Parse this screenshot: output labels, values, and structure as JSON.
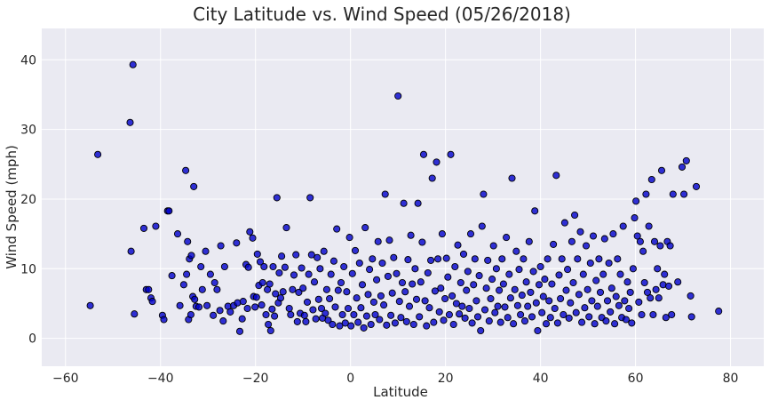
{
  "chart_data": {
    "type": "scatter",
    "title": "City Latitude vs. Wind Speed (05/26/2018)",
    "xlabel": "Latitude",
    "ylabel": "Wind Speed (mph)",
    "xlim": [
      -65,
      87
    ],
    "ylim": [
      -4,
      44.5
    ],
    "xticks": [
      -60,
      -40,
      -20,
      0,
      20,
      40,
      60,
      80
    ],
    "yticks": [
      0,
      10,
      20,
      30,
      40
    ],
    "xtick_labels": [
      "−60",
      "−40",
      "−20",
      "0",
      "20",
      "40",
      "60",
      "80"
    ],
    "ytick_labels": [
      "0",
      "10",
      "20",
      "30",
      "40"
    ],
    "grid": true,
    "colors": {
      "background": "#eaeaf2",
      "grid": "#ffffff",
      "point_fill": "#0000cc",
      "point_edge": "#000000"
    },
    "points": [
      [
        -54.8,
        4.7
      ],
      [
        -53.2,
        26.4
      ],
      [
        -46.4,
        31.0
      ],
      [
        -45.8,
        39.3
      ],
      [
        -46.2,
        12.5
      ],
      [
        -45.5,
        3.5
      ],
      [
        -43.5,
        15.8
      ],
      [
        -43.0,
        7.0
      ],
      [
        -42.5,
        7.0
      ],
      [
        -42.0,
        5.8
      ],
      [
        -41.7,
        5.3
      ],
      [
        -41.0,
        16.1
      ],
      [
        -39.6,
        3.3
      ],
      [
        -39.3,
        2.7
      ],
      [
        -38.5,
        18.3
      ],
      [
        -38.2,
        18.3
      ],
      [
        -37.6,
        9.0
      ],
      [
        -36.4,
        15.0
      ],
      [
        -35.9,
        4.7
      ],
      [
        -35.1,
        7.7
      ],
      [
        -34.7,
        24.1
      ],
      [
        -34.5,
        9.2
      ],
      [
        -34.3,
        13.9
      ],
      [
        -34.1,
        2.7
      ],
      [
        -33.9,
        11.4
      ],
      [
        -33.6,
        3.4
      ],
      [
        -33.5,
        11.9
      ],
      [
        -33.2,
        6.0
      ],
      [
        -33.0,
        21.8
      ],
      [
        -32.8,
        5.6
      ],
      [
        -32.5,
        4.6
      ],
      [
        -31.9,
        4.5
      ],
      [
        -31.5,
        10.3
      ],
      [
        -31.2,
        7.0
      ],
      [
        -30.5,
        12.5
      ],
      [
        -30.2,
        4.7
      ],
      [
        -29.5,
        9.2
      ],
      [
        -28.9,
        3.3
      ],
      [
        -28.6,
        8.0
      ],
      [
        -28.1,
        7.0
      ],
      [
        -27.5,
        4.0
      ],
      [
        -27.3,
        13.3
      ],
      [
        -26.8,
        2.5
      ],
      [
        -26.5,
        10.3
      ],
      [
        -25.8,
        4.6
      ],
      [
        -25.3,
        3.8
      ],
      [
        -24.6,
        4.7
      ],
      [
        -24.0,
        13.7
      ],
      [
        -23.8,
        5.1
      ],
      [
        -23.3,
        1.0
      ],
      [
        -22.8,
        2.8
      ],
      [
        -22.6,
        5.3
      ],
      [
        -22.0,
        10.6
      ],
      [
        -21.7,
        4.3
      ],
      [
        -21.5,
        10.2
      ],
      [
        -21.2,
        15.3
      ],
      [
        -20.6,
        14.4
      ],
      [
        -20.4,
        6.0
      ],
      [
        -20.1,
        4.5
      ],
      [
        -19.8,
        5.9
      ],
      [
        -19.6,
        12.1
      ],
      [
        -19.3,
        7.6
      ],
      [
        -19.0,
        11.0
      ],
      [
        -18.7,
        4.8
      ],
      [
        -18.5,
        8.0
      ],
      [
        -18.2,
        10.3
      ],
      [
        -17.8,
        3.4
      ],
      [
        -17.5,
        7.0
      ],
      [
        -17.3,
        2.0
      ],
      [
        -17.0,
        7.8
      ],
      [
        -16.8,
        1.1
      ],
      [
        -16.5,
        4.2
      ],
      [
        -16.3,
        10.3
      ],
      [
        -16.0,
        3.2
      ],
      [
        -15.8,
        6.4
      ],
      [
        -15.5,
        20.2
      ],
      [
        -15.2,
        5.1
      ],
      [
        -15.0,
        9.4
      ],
      [
        -14.7,
        5.8
      ],
      [
        -14.5,
        11.8
      ],
      [
        -14.2,
        6.7
      ],
      [
        -13.8,
        10.2
      ],
      [
        -13.5,
        15.9
      ],
      [
        -12.9,
        4.3
      ],
      [
        -12.6,
        3.4
      ],
      [
        -12.2,
        7.0
      ],
      [
        -11.9,
        9.1
      ],
      [
        -11.5,
        12.0
      ],
      [
        -11.2,
        2.4
      ],
      [
        -10.9,
        6.6
      ],
      [
        -10.6,
        3.6
      ],
      [
        -10.3,
        10.1
      ],
      [
        -10.0,
        7.2
      ],
      [
        -9.7,
        3.3
      ],
      [
        -9.4,
        2.4
      ],
      [
        -9.1,
        5.2
      ],
      [
        -8.8,
        9.2
      ],
      [
        -8.5,
        20.2
      ],
      [
        -8.2,
        12.0
      ],
      [
        -7.9,
        4.1
      ],
      [
        -7.6,
        8.1
      ],
      [
        -7.3,
        2.8
      ],
      [
        -7.0,
        11.6
      ],
      [
        -6.7,
        5.6
      ],
      [
        -6.4,
        10.0
      ],
      [
        -6.1,
        4.3
      ],
      [
        -5.9,
        2.9
      ],
      [
        -5.6,
        12.5
      ],
      [
        -5.3,
        3.6
      ],
      [
        -5.0,
        7.0
      ],
      [
        -4.7,
        2.6
      ],
      [
        -4.4,
        5.7
      ],
      [
        -4.1,
        9.2
      ],
      [
        -3.8,
        2.0
      ],
      [
        -3.5,
        11.1
      ],
      [
        -3.2,
        4.5
      ],
      [
        -2.9,
        15.7
      ],
      [
        -2.6,
        6.9
      ],
      [
        -2.3,
        1.8
      ],
      [
        -2.0,
        8.0
      ],
      [
        -1.7,
        3.4
      ],
      [
        -1.4,
        10.3
      ],
      [
        -1.1,
        2.2
      ],
      [
        -0.8,
        6.7
      ],
      [
        -0.5,
        4.3
      ],
      [
        -0.2,
        14.5
      ],
      [
        0.1,
        1.8
      ],
      [
        0.4,
        9.3
      ],
      [
        0.7,
        3.4
      ],
      [
        1.0,
        12.6
      ],
      [
        1.3,
        5.8
      ],
      [
        1.6,
        2.3
      ],
      [
        1.9,
        10.8
      ],
      [
        2.2,
        4.4
      ],
      [
        2.5,
        7.7
      ],
      [
        2.8,
        1.5
      ],
      [
        3.1,
        15.9
      ],
      [
        3.4,
        3.2
      ],
      [
        3.7,
        6.3
      ],
      [
        4.0,
        9.9
      ],
      [
        4.3,
        2.0
      ],
      [
        4.6,
        11.4
      ],
      [
        4.9,
        5.2
      ],
      [
        5.2,
        3.4
      ],
      [
        5.5,
        8.4
      ],
      [
        5.8,
        13.9
      ],
      [
        6.1,
        2.7
      ],
      [
        6.4,
        6.1
      ],
      [
        6.7,
        10.8
      ],
      [
        7.0,
        4.8
      ],
      [
        7.3,
        20.7
      ],
      [
        7.6,
        1.9
      ],
      [
        7.9,
        8.9
      ],
      [
        8.2,
        14.1
      ],
      [
        8.5,
        3.3
      ],
      [
        8.8,
        6.5
      ],
      [
        9.1,
        11.6
      ],
      [
        9.4,
        2.2
      ],
      [
        9.7,
        9.3
      ],
      [
        10.0,
        34.8
      ],
      [
        10.3,
        5.3
      ],
      [
        10.6,
        3.0
      ],
      [
        10.9,
        8.0
      ],
      [
        11.2,
        19.4
      ],
      [
        11.5,
        6.7
      ],
      [
        11.8,
        2.4
      ],
      [
        12.1,
        11.3
      ],
      [
        12.4,
        4.6
      ],
      [
        12.7,
        14.8
      ],
      [
        13.0,
        7.8
      ],
      [
        13.3,
        2.0
      ],
      [
        13.6,
        10.0
      ],
      [
        13.9,
        5.6
      ],
      [
        14.2,
        19.4
      ],
      [
        14.5,
        3.1
      ],
      [
        14.8,
        8.1
      ],
      [
        15.1,
        13.8
      ],
      [
        15.4,
        26.4
      ],
      [
        15.7,
        5.4
      ],
      [
        16.0,
        1.8
      ],
      [
        16.3,
        9.4
      ],
      [
        16.6,
        4.4
      ],
      [
        16.9,
        11.2
      ],
      [
        17.2,
        23.0
      ],
      [
        17.5,
        2.3
      ],
      [
        17.8,
        6.8
      ],
      [
        18.1,
        25.3
      ],
      [
        18.4,
        11.4
      ],
      [
        18.7,
        3.8
      ],
      [
        19.0,
        7.2
      ],
      [
        19.3,
        15.0
      ],
      [
        19.6,
        2.6
      ],
      [
        19.9,
        5.7
      ],
      [
        20.2,
        11.5
      ],
      [
        20.5,
        8.8
      ],
      [
        20.8,
        3.4
      ],
      [
        21.1,
        26.4
      ],
      [
        21.4,
        6.1
      ],
      [
        21.7,
        2.0
      ],
      [
        22.0,
        10.3
      ],
      [
        22.3,
        5.0
      ],
      [
        22.6,
        13.4
      ],
      [
        22.9,
        3.5
      ],
      [
        23.2,
        8.0
      ],
      [
        23.5,
        4.6
      ],
      [
        23.8,
        12.1
      ],
      [
        24.1,
        2.9
      ],
      [
        24.4,
        6.9
      ],
      [
        24.7,
        9.6
      ],
      [
        25.0,
        4.3
      ],
      [
        25.3,
        15.0
      ],
      [
        25.6,
        2.2
      ],
      [
        25.9,
        7.7
      ],
      [
        26.2,
        11.4
      ],
      [
        26.5,
        5.4
      ],
      [
        26.8,
        3.1
      ],
      [
        27.1,
        9.0
      ],
      [
        27.4,
        1.1
      ],
      [
        27.7,
        16.1
      ],
      [
        28.0,
        20.7
      ],
      [
        28.3,
        4.1
      ],
      [
        28.6,
        7.2
      ],
      [
        28.9,
        11.2
      ],
      [
        29.2,
        2.5
      ],
      [
        29.5,
        5.7
      ],
      [
        29.8,
        8.5
      ],
      [
        30.1,
        13.3
      ],
      [
        30.4,
        3.7
      ],
      [
        30.7,
        10.0
      ],
      [
        31.0,
        4.6
      ],
      [
        31.3,
        6.9
      ],
      [
        31.6,
        2.3
      ],
      [
        31.9,
        11.4
      ],
      [
        32.2,
        7.8
      ],
      [
        32.5,
        4.5
      ],
      [
        32.8,
        14.5
      ],
      [
        33.1,
        3.0
      ],
      [
        33.4,
        9.2
      ],
      [
        33.7,
        5.8
      ],
      [
        34.0,
        23.0
      ],
      [
        34.3,
        2.1
      ],
      [
        34.6,
        7.0
      ],
      [
        34.9,
        12.5
      ],
      [
        35.2,
        4.7
      ],
      [
        35.5,
        9.9
      ],
      [
        35.8,
        3.4
      ],
      [
        36.1,
        6.2
      ],
      [
        36.4,
        11.4
      ],
      [
        36.7,
        2.5
      ],
      [
        37.0,
        8.1
      ],
      [
        37.3,
        4.6
      ],
      [
        37.6,
        13.9
      ],
      [
        37.9,
        6.6
      ],
      [
        38.2,
        3.1
      ],
      [
        38.5,
        9.6
      ],
      [
        38.8,
        18.3
      ],
      [
        39.1,
        5.1
      ],
      [
        39.4,
        1.1
      ],
      [
        39.7,
        7.7
      ],
      [
        40.0,
        10.3
      ],
      [
        40.3,
        3.7
      ],
      [
        40.6,
        6.0
      ],
      [
        40.9,
        8.5
      ],
      [
        41.2,
        2.1
      ],
      [
        41.5,
        11.4
      ],
      [
        41.8,
        5.4
      ],
      [
        42.1,
        3.0
      ],
      [
        42.4,
        7.8
      ],
      [
        42.7,
        13.5
      ],
      [
        43.0,
        4.3
      ],
      [
        43.3,
        23.4
      ],
      [
        43.6,
        2.2
      ],
      [
        43.9,
        9.1
      ],
      [
        44.2,
        5.7
      ],
      [
        44.5,
        11.4
      ],
      [
        44.8,
        3.4
      ],
      [
        45.1,
        16.6
      ],
      [
        45.4,
        6.9
      ],
      [
        45.7,
        9.9
      ],
      [
        46.0,
        2.9
      ],
      [
        46.3,
        5.1
      ],
      [
        46.6,
        13.9
      ],
      [
        46.9,
        8.0
      ],
      [
        47.2,
        17.7
      ],
      [
        47.5,
        3.7
      ],
      [
        47.8,
        11.4
      ],
      [
        48.1,
        6.3
      ],
      [
        48.4,
        15.3
      ],
      [
        48.7,
        2.3
      ],
      [
        49.0,
        9.2
      ],
      [
        49.3,
        4.4
      ],
      [
        49.6,
        13.3
      ],
      [
        49.9,
        7.0
      ],
      [
        50.2,
        3.1
      ],
      [
        50.5,
        10.8
      ],
      [
        50.8,
        5.4
      ],
      [
        51.1,
        14.7
      ],
      [
        51.4,
        2.1
      ],
      [
        51.7,
        8.3
      ],
      [
        52.0,
        4.6
      ],
      [
        52.3,
        11.4
      ],
      [
        52.6,
        6.6
      ],
      [
        52.9,
        3.0
      ],
      [
        53.2,
        9.2
      ],
      [
        53.5,
        14.3
      ],
      [
        53.8,
        2.5
      ],
      [
        54.1,
        5.4
      ],
      [
        54.4,
        10.8
      ],
      [
        54.7,
        3.8
      ],
      [
        55.0,
        7.2
      ],
      [
        55.3,
        15.0
      ],
      [
        55.6,
        2.1
      ],
      [
        55.9,
        6.0
      ],
      [
        56.2,
        11.4
      ],
      [
        56.5,
        4.7
      ],
      [
        56.8,
        9.2
      ],
      [
        57.1,
        3.0
      ],
      [
        57.4,
        16.1
      ],
      [
        57.7,
        5.4
      ],
      [
        58.0,
        2.7
      ],
      [
        58.3,
        8.1
      ],
      [
        58.6,
        4.3
      ],
      [
        58.9,
        6.6
      ],
      [
        59.2,
        2.2
      ],
      [
        59.5,
        10.0
      ],
      [
        59.8,
        17.3
      ],
      [
        60.1,
        19.7
      ],
      [
        60.4,
        14.7
      ],
      [
        60.7,
        5.2
      ],
      [
        61.0,
        13.9
      ],
      [
        61.3,
        3.4
      ],
      [
        61.6,
        12.5
      ],
      [
        61.9,
        8.0
      ],
      [
        62.2,
        20.7
      ],
      [
        62.5,
        6.6
      ],
      [
        62.8,
        16.1
      ],
      [
        63.1,
        5.8
      ],
      [
        63.4,
        22.8
      ],
      [
        63.7,
        3.4
      ],
      [
        64.0,
        13.9
      ],
      [
        64.3,
        7.0
      ],
      [
        64.6,
        10.0
      ],
      [
        64.9,
        5.8
      ],
      [
        65.2,
        13.3
      ],
      [
        65.5,
        24.1
      ],
      [
        65.8,
        7.7
      ],
      [
        66.1,
        9.2
      ],
      [
        66.4,
        3.0
      ],
      [
        66.7,
        13.9
      ],
      [
        67.0,
        7.5
      ],
      [
        67.3,
        13.3
      ],
      [
        67.6,
        3.4
      ],
      [
        67.9,
        20.7
      ],
      [
        68.9,
        8.1
      ],
      [
        69.8,
        24.6
      ],
      [
        70.2,
        20.7
      ],
      [
        70.7,
        25.5
      ],
      [
        71.6,
        6.1
      ],
      [
        71.8,
        3.1
      ],
      [
        72.8,
        21.8
      ],
      [
        77.5,
        3.9
      ]
    ]
  }
}
